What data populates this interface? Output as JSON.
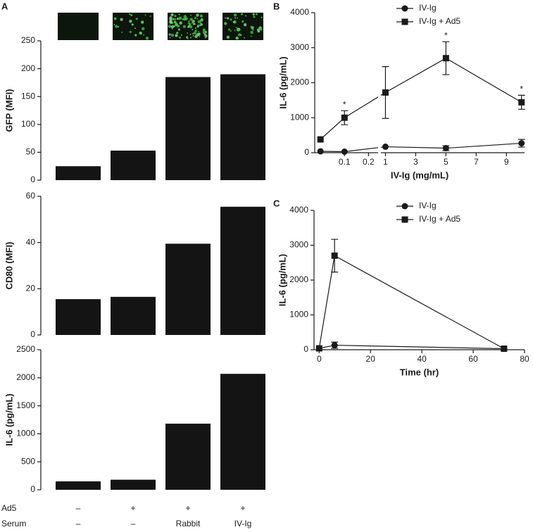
{
  "chart_data": [
    {
      "type": "bar",
      "panel": "A",
      "ylabel": "GFP (MFI)",
      "categories": [
        null,
        null,
        null,
        null
      ],
      "values": [
        25,
        53,
        185,
        190
      ],
      "color": "#141414",
      "ylim": [
        0,
        250
      ],
      "yticks": [
        0,
        50,
        100,
        150,
        200,
        250
      ]
    },
    {
      "type": "bar",
      "ylabel": "CD80 (MFI)",
      "categories": [
        null,
        null,
        null,
        null
      ],
      "values": [
        15.5,
        16.5,
        39.5,
        55.5
      ],
      "color": "#141414",
      "ylim": [
        0,
        60
      ],
      "yticks": [
        0,
        20,
        40,
        60
      ]
    },
    {
      "type": "bar",
      "ylabel": "IL-6 (pg/mL)",
      "categories": [
        null,
        null,
        null,
        null
      ],
      "values": [
        150,
        180,
        1180,
        2070
      ],
      "color": "#141414",
      "ylim": [
        0,
        2500
      ],
      "yticks": [
        0,
        500,
        1000,
        1500,
        2000,
        2500
      ]
    },
    {
      "type": "line",
      "panel": "B",
      "xlabel": "IV-Ig (mg/mL)",
      "ylabel": "IL-6 (pg/mL)",
      "legend": "upper right",
      "x": [
        0,
        0.1,
        1,
        5,
        10
      ],
      "x_segments": [
        {
          "xlim": [
            -0.024,
            0.24
          ],
          "xticks": [
            0.1,
            0.2
          ]
        },
        {
          "xlim": [
            0.7,
            10.2
          ],
          "xticks": [
            1,
            3,
            5,
            7,
            9
          ]
        }
      ],
      "ylim": [
        0,
        4000
      ],
      "yticks": [
        0,
        1000,
        2000,
        3000,
        4000
      ],
      "series": [
        {
          "name": "IV-Ig",
          "color": "#1a1a1a",
          "marker": "circle",
          "values": [
            40,
            30,
            170,
            130,
            270
          ],
          "errors": [
            null,
            null,
            null,
            70,
            110
          ]
        },
        {
          "name": "IV-Ig + Ad5",
          "color": "#1a1a1a",
          "marker": "square",
          "values": [
            380,
            1000,
            1720,
            2700,
            1440
          ],
          "errors": [
            null,
            200,
            740,
            470,
            200
          ]
        }
      ],
      "annotations": [
        {
          "text": "*",
          "x": 0.1
        },
        {
          "text": "*",
          "x": 5
        },
        {
          "text": "*",
          "x": 10
        }
      ]
    },
    {
      "type": "line",
      "panel": "C",
      "xlabel": "Time (hr)",
      "ylabel": "IL-6 (pg/mL)",
      "legend": "upper right",
      "x": [
        0,
        6,
        72
      ],
      "xlim": [
        -2,
        80
      ],
      "xticks": [
        0,
        20,
        40,
        60,
        80
      ],
      "ylim": [
        0,
        4000
      ],
      "yticks": [
        0,
        1000,
        2000,
        3000,
        4000
      ],
      "series": [
        {
          "name": "IV-Ig",
          "color": "#1a1a1a",
          "marker": "circle",
          "values": [
            40,
            130,
            30
          ],
          "errors": [
            null,
            90,
            null
          ]
        },
        {
          "name": "IV-Ig + Ad5",
          "color": "#1a1a1a",
          "marker": "square",
          "values": [
            40,
            2700,
            30
          ],
          "errors": [
            null,
            470,
            null
          ]
        }
      ]
    }
  ],
  "conditions": [
    {
      "label": "Ad5",
      "values": [
        "–",
        "+",
        "+",
        "+"
      ]
    },
    {
      "label": "Serum",
      "values": [
        "–",
        "–",
        "Rabbit",
        "IV-Ig"
      ]
    }
  ]
}
